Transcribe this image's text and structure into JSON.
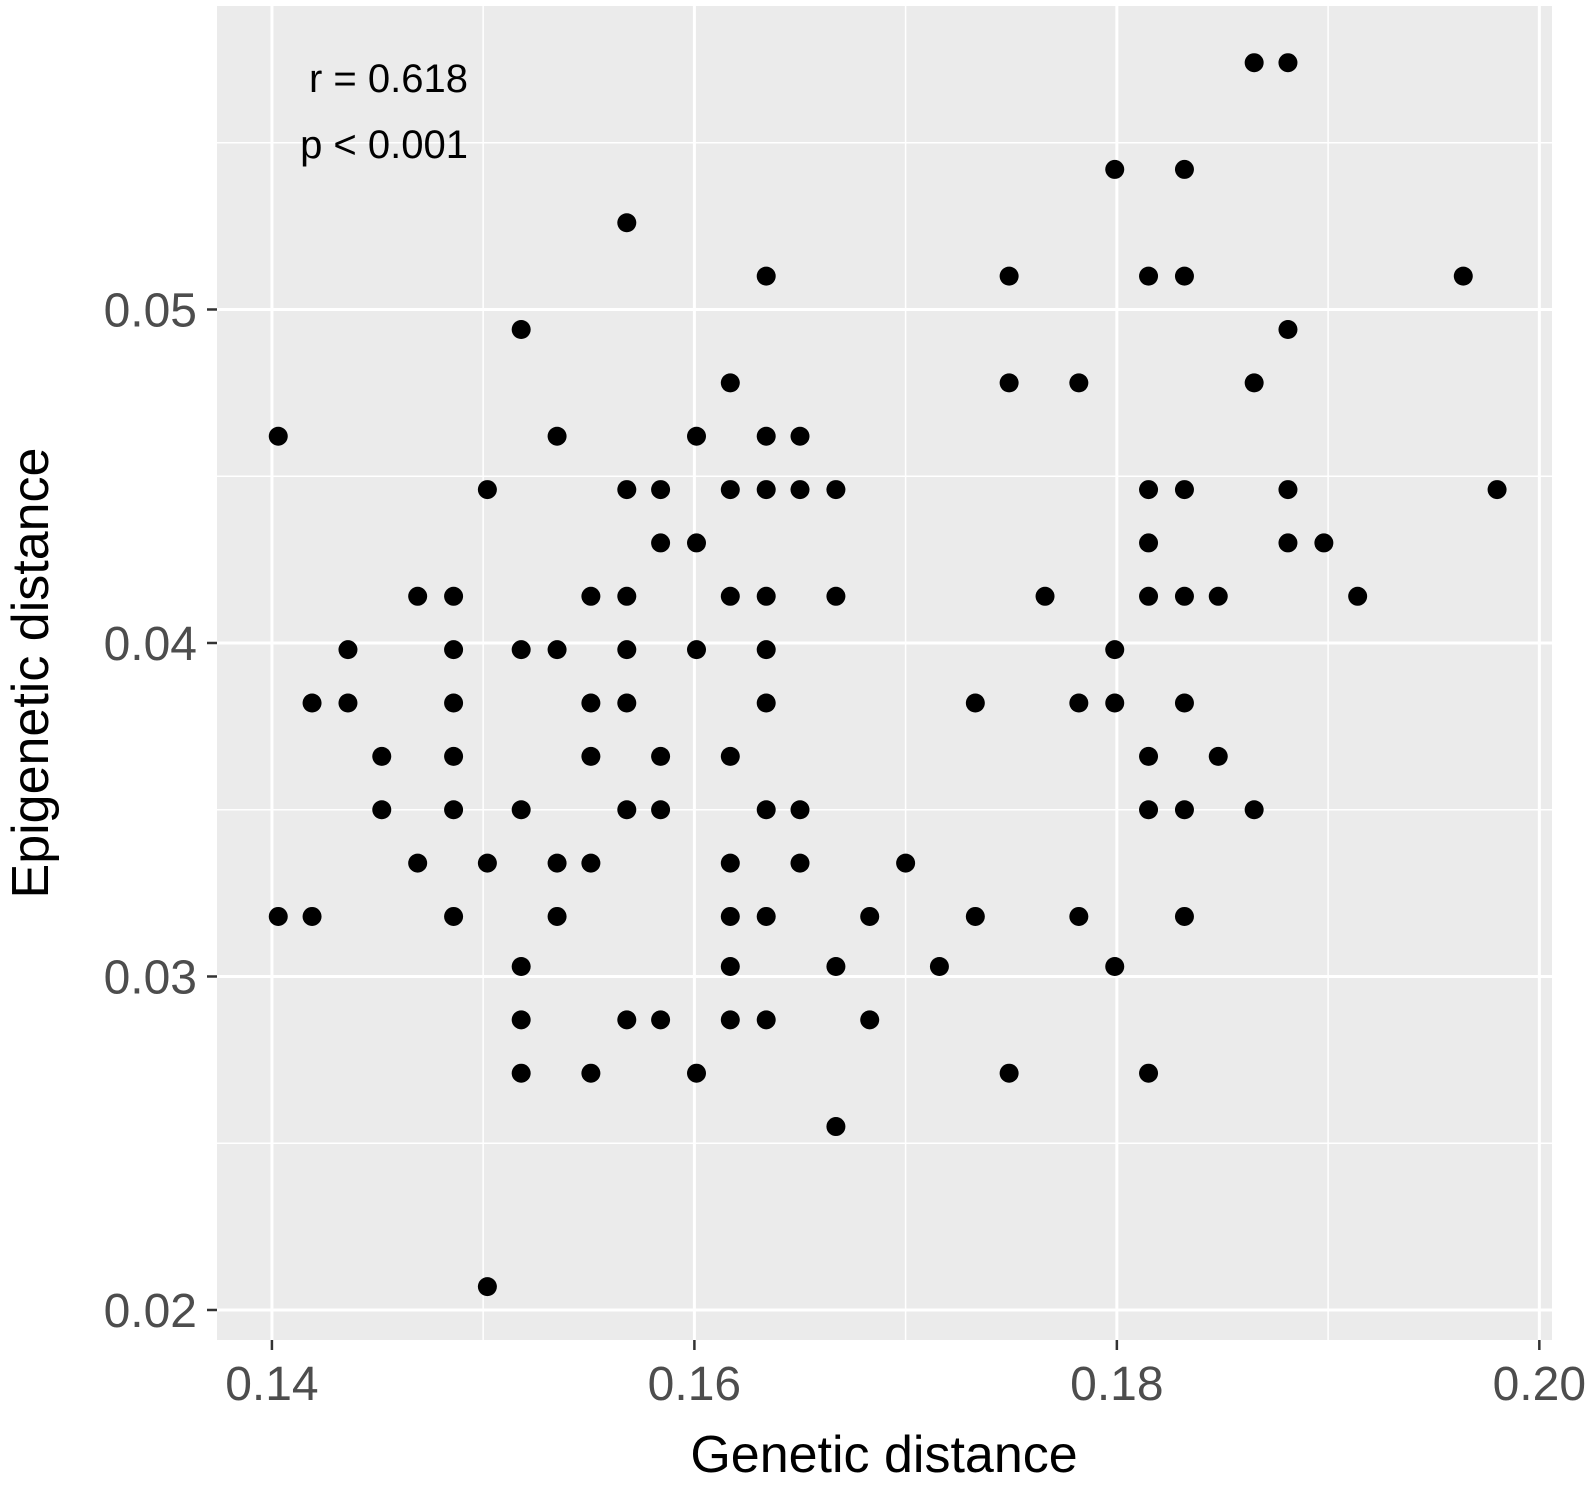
{
  "chart_data": {
    "type": "scatter",
    "title": "",
    "xlabel": "Genetic distance",
    "ylabel": "Epigenetic distance",
    "xlim": [
      0.1374,
      0.2006
    ],
    "ylim": [
      0.0191,
      0.0591
    ],
    "x_ticks": [
      0.14,
      0.16,
      0.18,
      0.2
    ],
    "x_tick_labels": [
      "0.14",
      "0.16",
      "0.18",
      "0.20"
    ],
    "y_ticks": [
      0.02,
      0.03,
      0.04,
      0.05
    ],
    "y_tick_labels": [
      "0.02",
      "0.03",
      "0.04",
      "0.05"
    ],
    "grid": true,
    "annotations": [
      "r = 0.618",
      "p < 0.001"
    ],
    "colors": {
      "panel": "#ebebeb",
      "grid": "#ffffff",
      "point": "#000000",
      "tick_text": "#4d4d4d"
    },
    "points": [
      [
        0.1403,
        0.0462
      ],
      [
        0.1403,
        0.0318
      ],
      [
        0.1419,
        0.0382
      ],
      [
        0.1419,
        0.0318
      ],
      [
        0.1436,
        0.0398
      ],
      [
        0.1436,
        0.0382
      ],
      [
        0.1452,
        0.0366
      ],
      [
        0.1452,
        0.035
      ],
      [
        0.1469,
        0.0414
      ],
      [
        0.1469,
        0.0334
      ],
      [
        0.1486,
        0.0414
      ],
      [
        0.1486,
        0.0398
      ],
      [
        0.1486,
        0.0382
      ],
      [
        0.1486,
        0.0366
      ],
      [
        0.1486,
        0.035
      ],
      [
        0.1486,
        0.0318
      ],
      [
        0.1502,
        0.0446
      ],
      [
        0.1502,
        0.0334
      ],
      [
        0.1502,
        0.0207
      ],
      [
        0.1518,
        0.0494
      ],
      [
        0.1518,
        0.0398
      ],
      [
        0.1518,
        0.035
      ],
      [
        0.1518,
        0.0303
      ],
      [
        0.1518,
        0.0287
      ],
      [
        0.1518,
        0.0271
      ],
      [
        0.1535,
        0.0462
      ],
      [
        0.1535,
        0.0398
      ],
      [
        0.1535,
        0.0334
      ],
      [
        0.1535,
        0.0318
      ],
      [
        0.1551,
        0.0414
      ],
      [
        0.1551,
        0.0382
      ],
      [
        0.1551,
        0.0366
      ],
      [
        0.1551,
        0.0334
      ],
      [
        0.1551,
        0.0271
      ],
      [
        0.1568,
        0.0526
      ],
      [
        0.1568,
        0.0446
      ],
      [
        0.1568,
        0.0414
      ],
      [
        0.1568,
        0.0398
      ],
      [
        0.1568,
        0.0382
      ],
      [
        0.1568,
        0.035
      ],
      [
        0.1568,
        0.0287
      ],
      [
        0.1584,
        0.0446
      ],
      [
        0.1584,
        0.043
      ],
      [
        0.1584,
        0.0366
      ],
      [
        0.1584,
        0.035
      ],
      [
        0.1584,
        0.0287
      ],
      [
        0.1601,
        0.0462
      ],
      [
        0.1601,
        0.043
      ],
      [
        0.1601,
        0.0398
      ],
      [
        0.1601,
        0.0271
      ],
      [
        0.1617,
        0.0478
      ],
      [
        0.1617,
        0.0446
      ],
      [
        0.1617,
        0.0414
      ],
      [
        0.1617,
        0.0366
      ],
      [
        0.1617,
        0.0334
      ],
      [
        0.1617,
        0.0318
      ],
      [
        0.1617,
        0.0303
      ],
      [
        0.1617,
        0.0287
      ],
      [
        0.1634,
        0.051
      ],
      [
        0.1634,
        0.0462
      ],
      [
        0.1634,
        0.0446
      ],
      [
        0.1634,
        0.0414
      ],
      [
        0.1634,
        0.0398
      ],
      [
        0.1634,
        0.0382
      ],
      [
        0.1634,
        0.035
      ],
      [
        0.1634,
        0.0318
      ],
      [
        0.1634,
        0.0287
      ],
      [
        0.165,
        0.0462
      ],
      [
        0.165,
        0.0446
      ],
      [
        0.165,
        0.035
      ],
      [
        0.165,
        0.0334
      ],
      [
        0.1667,
        0.0446
      ],
      [
        0.1667,
        0.0414
      ],
      [
        0.1667,
        0.0303
      ],
      [
        0.1667,
        0.0255
      ],
      [
        0.1683,
        0.0318
      ],
      [
        0.1683,
        0.0287
      ],
      [
        0.17,
        0.0334
      ],
      [
        0.1716,
        0.0303
      ],
      [
        0.1733,
        0.0382
      ],
      [
        0.1733,
        0.0318
      ],
      [
        0.1749,
        0.051
      ],
      [
        0.1749,
        0.0478
      ],
      [
        0.1749,
        0.0271
      ],
      [
        0.1766,
        0.0414
      ],
      [
        0.1782,
        0.0478
      ],
      [
        0.1782,
        0.0382
      ],
      [
        0.1782,
        0.0318
      ],
      [
        0.1799,
        0.0542
      ],
      [
        0.1799,
        0.0398
      ],
      [
        0.1799,
        0.0382
      ],
      [
        0.1799,
        0.0303
      ],
      [
        0.1815,
        0.051
      ],
      [
        0.1815,
        0.0446
      ],
      [
        0.1815,
        0.043
      ],
      [
        0.1815,
        0.0414
      ],
      [
        0.1815,
        0.0366
      ],
      [
        0.1815,
        0.035
      ],
      [
        0.1815,
        0.0271
      ],
      [
        0.1832,
        0.0542
      ],
      [
        0.1832,
        0.051
      ],
      [
        0.1832,
        0.0446
      ],
      [
        0.1832,
        0.0414
      ],
      [
        0.1832,
        0.0382
      ],
      [
        0.1832,
        0.035
      ],
      [
        0.1832,
        0.0318
      ],
      [
        0.1848,
        0.0414
      ],
      [
        0.1848,
        0.0366
      ],
      [
        0.1865,
        0.0574
      ],
      [
        0.1865,
        0.0478
      ],
      [
        0.1865,
        0.035
      ],
      [
        0.1881,
        0.0574
      ],
      [
        0.1881,
        0.0494
      ],
      [
        0.1881,
        0.0446
      ],
      [
        0.1881,
        0.043
      ],
      [
        0.1898,
        0.043
      ],
      [
        0.1914,
        0.0414
      ],
      [
        0.1964,
        0.051
      ],
      [
        0.198,
        0.0446
      ]
    ]
  }
}
